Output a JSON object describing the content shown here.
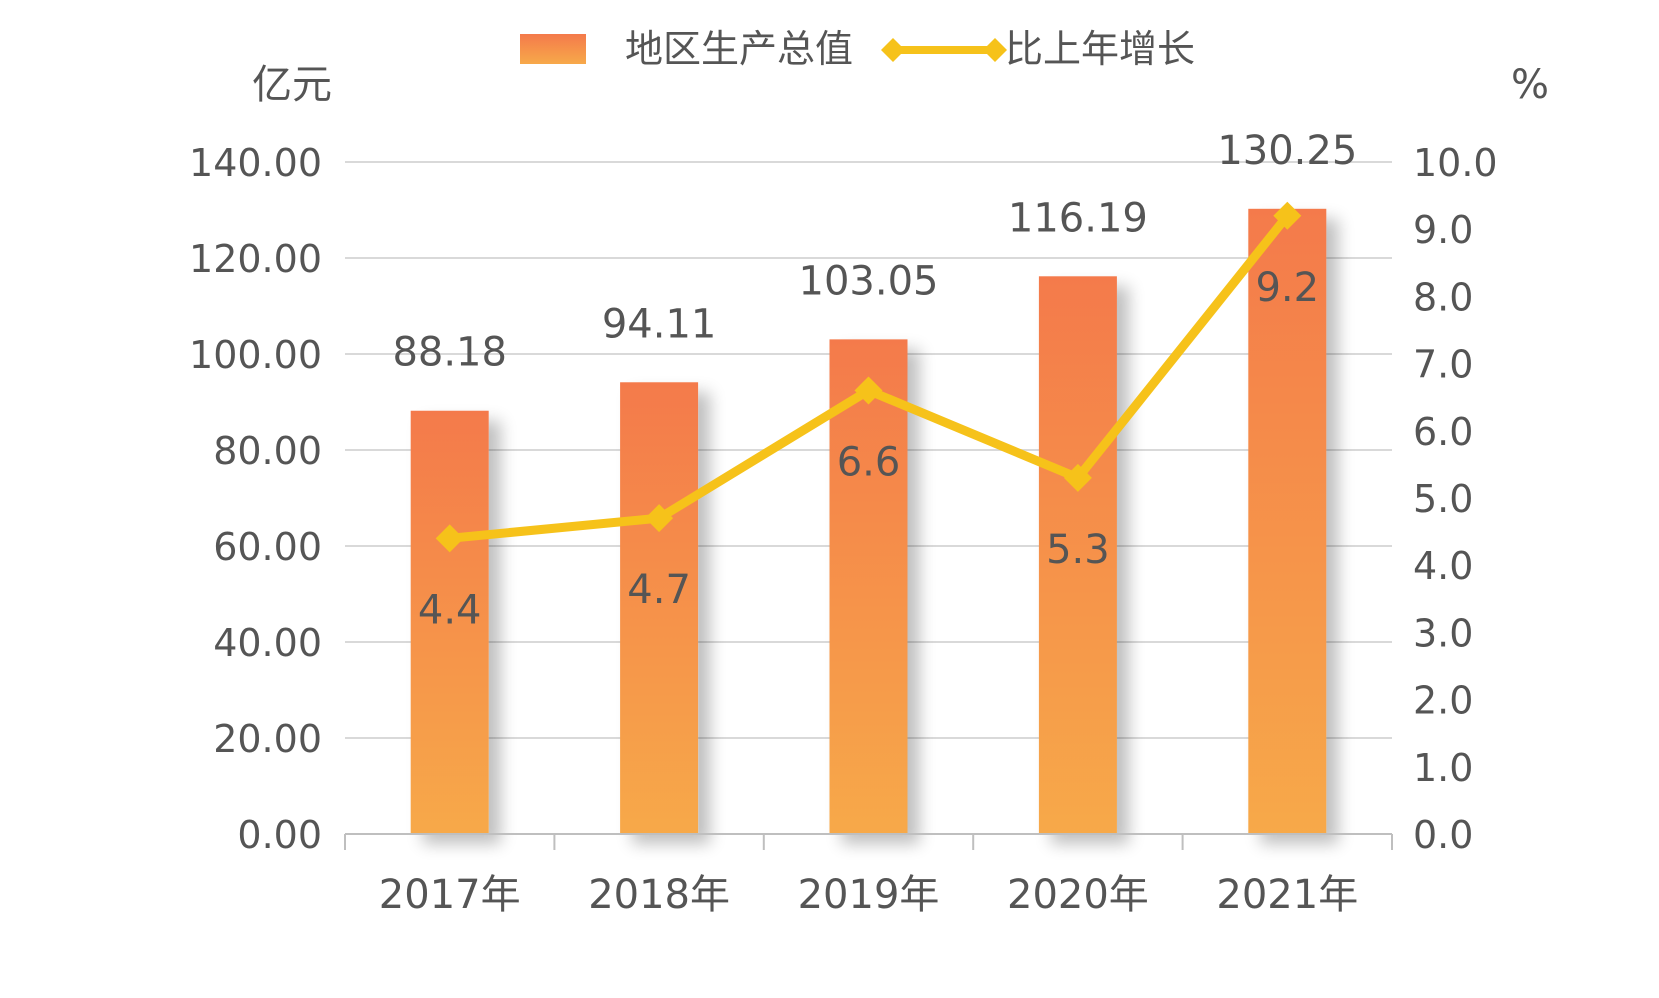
{
  "chart_data": {
    "type": "bar",
    "categories": [
      "2017年",
      "2018年",
      "2019年",
      "2020年",
      "2021年"
    ],
    "series": [
      {
        "name": "地区生产总值",
        "type": "bar",
        "axis": "left",
        "values": [
          88.18,
          94.11,
          103.05,
          116.19,
          130.25
        ],
        "labels": [
          "88.18",
          "94.11",
          "103.05",
          "116.19",
          "130.25"
        ]
      },
      {
        "name": "比上年增长",
        "type": "line",
        "axis": "right",
        "values": [
          4.4,
          4.7,
          6.6,
          5.3,
          9.2
        ],
        "labels": [
          "4.4",
          "4.7",
          "6.6",
          "5.3",
          "9.2"
        ]
      }
    ],
    "left_axis": {
      "unit": "亿元",
      "range": [
        0,
        140
      ],
      "ticks": [
        "0.00",
        "20.00",
        "40.00",
        "60.00",
        "80.00",
        "100.00",
        "120.00",
        "140.00"
      ]
    },
    "right_axis": {
      "unit": "%",
      "range": [
        0,
        10
      ],
      "ticks": [
        "0.0",
        "1.0",
        "2.0",
        "3.0",
        "4.0",
        "5.0",
        "6.0",
        "7.0",
        "8.0",
        "9.0",
        "10.0"
      ]
    },
    "grid": true,
    "legend_position": "top"
  },
  "colors": {
    "bar_top": "#f47a4b",
    "bar_bottom": "#f7a94a",
    "line": "#f6c21a",
    "grid": "#d9d9d9",
    "text": "#555555",
    "axis": "#bfbfbf"
  }
}
